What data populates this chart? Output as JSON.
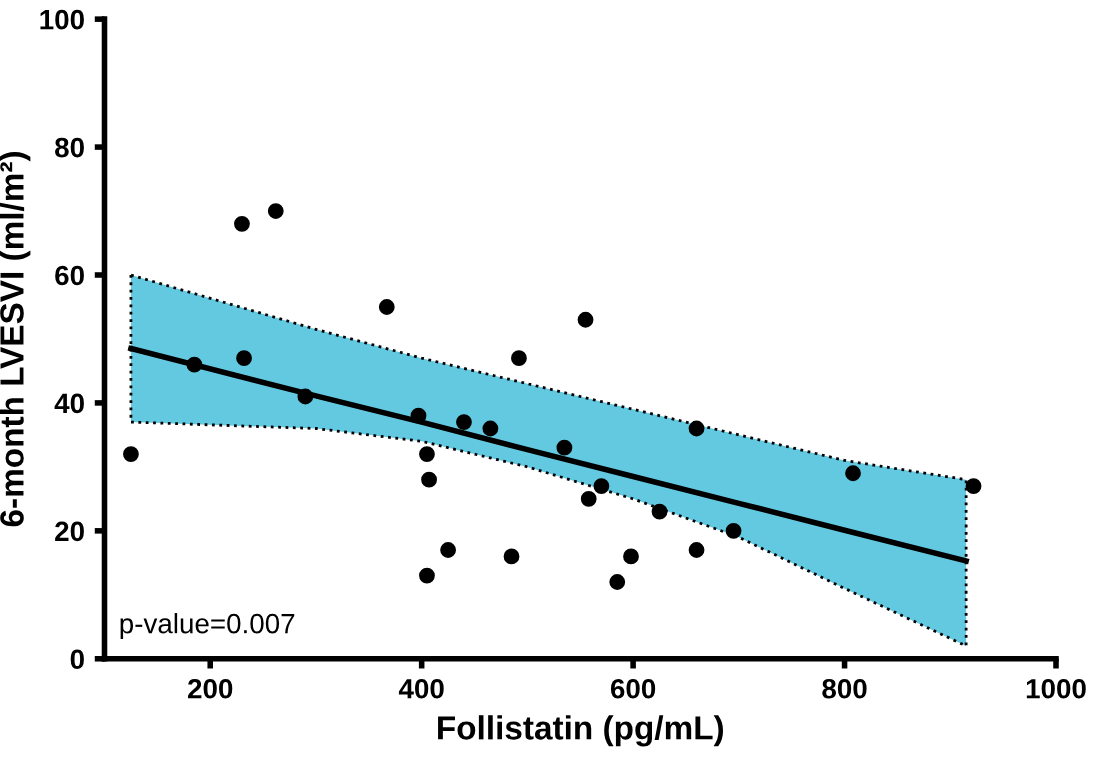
{
  "chart_data": {
    "type": "scatter",
    "xlabel": "Follistatin (pg/mL)",
    "ylabel": "6-month LVESVI (ml/m²)",
    "series": [
      {
        "color": "#000000",
        "marker": "circle",
        "x": [
          125,
          185,
          230,
          232,
          262,
          290,
          367,
          397,
          405,
          407,
          405,
          425,
          440,
          465,
          485,
          492,
          535,
          555,
          558,
          570,
          585,
          598,
          625,
          660,
          660,
          695,
          808,
          922
        ],
        "values": [
          32,
          46,
          68,
          47,
          70,
          41,
          55,
          38,
          32,
          28,
          13,
          17,
          37,
          36,
          16,
          47,
          33,
          53,
          25,
          27,
          12,
          16,
          23,
          36,
          17,
          20,
          29,
          27
        ]
      },
      {
        "type": "line",
        "color": "#000000",
        "marker": "none",
        "x": [
          125,
          300,
          400,
          500,
          600,
          700,
          800,
          915
        ],
        "values": [
          48.5,
          41.1,
          37.0,
          32.7,
          28.5,
          24.3,
          20.1,
          15.3
        ],
        "lower": [
          37,
          36,
          34,
          30,
          25,
          19,
          11,
          2
        ],
        "upper": [
          60,
          51.5,
          47,
          43,
          39,
          35,
          31,
          28
        ]
      }
    ],
    "annotations": [
      "p-value=0.007"
    ],
    "xlim": [
      100,
      1000
    ],
    "xticks": [
      200,
      400,
      600,
      800,
      1000
    ],
    "ylim": [
      0,
      100
    ],
    "yticks": [
      0,
      20,
      40,
      60,
      80,
      100
    ],
    "grid": false
  }
}
